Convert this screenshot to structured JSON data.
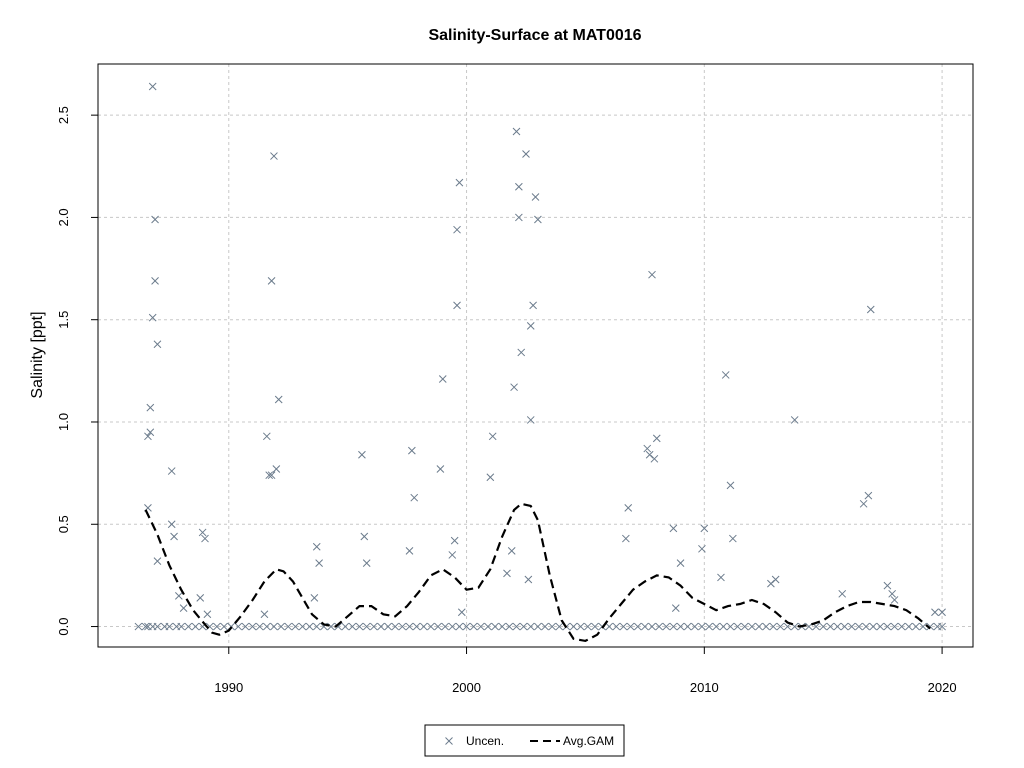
{
  "chart_data": {
    "type": "scatter",
    "title": "Salinity-Surface at MAT0016",
    "xlabel": "",
    "ylabel": "Salinity [ppt]",
    "xlim": [
      1984.5,
      2021.3
    ],
    "ylim": [
      -0.1,
      2.75
    ],
    "xticks": [
      1990,
      2000,
      2010,
      2020
    ],
    "yticks": [
      0.0,
      0.5,
      1.0,
      1.5,
      2.0,
      2.5
    ],
    "grid": true,
    "legend": {
      "placement": "bottom-center",
      "entries": [
        "Uncen.",
        "Avg.GAM"
      ]
    },
    "colors": {
      "points": "#6b7b8c",
      "gam": "#000000",
      "grid": "#c8c8c8"
    },
    "series": [
      {
        "name": "Uncen.",
        "marker": "x",
        "x": [
          1986.2,
          1986.5,
          1986.6,
          1986.8,
          1987.0,
          1987.3,
          1987.5,
          1987.8,
          1988.0,
          1988.3,
          1988.6,
          1988.9,
          1989.2,
          1989.5,
          1989.8,
          1990.1,
          1990.4,
          1990.7,
          1991.0,
          1991.3,
          1991.6,
          1991.9,
          1992.2,
          1992.5,
          1992.8,
          1993.1,
          1993.4,
          1993.7,
          1994.0,
          1994.3,
          1994.6,
          1994.9,
          1995.2,
          1995.5,
          1995.8,
          1996.1,
          1996.4,
          1996.7,
          1997.0,
          1997.3,
          1997.6,
          1997.9,
          1998.2,
          1998.5,
          1998.8,
          1999.1,
          1999.4,
          1999.7,
          2000.0,
          2000.3,
          2000.6,
          2000.9,
          2001.2,
          2001.5,
          2001.8,
          2002.1,
          2002.4,
          2002.7,
          2003.0,
          2003.3,
          2003.6,
          2003.9,
          2004.2,
          2004.5,
          2004.8,
          2005.1,
          2005.4,
          2005.7,
          2006.0,
          2006.3,
          2006.6,
          2006.9,
          2007.2,
          2007.5,
          2007.8,
          2008.1,
          2008.4,
          2008.7,
          2009.0,
          2009.3,
          2009.6,
          2009.9,
          2010.2,
          2010.5,
          2010.8,
          2011.1,
          2011.4,
          2011.7,
          2012.0,
          2012.3,
          2012.6,
          2012.9,
          2013.2,
          2013.5,
          2013.8,
          2014.1,
          2014.4,
          2014.7,
          2015.0,
          2015.3,
          2015.6,
          2015.9,
          2016.2,
          2016.5,
          2016.8,
          2017.1,
          2017.4,
          2017.7,
          2018.0,
          2018.3,
          2018.6,
          2018.9,
          2019.2,
          2019.5,
          2019.8,
          2020.0,
          1986.6,
          1986.6,
          1986.7,
          1986.7,
          1986.8,
          1986.8,
          1986.9,
          1986.9,
          1987.0,
          1987.0,
          1987.6,
          1987.6,
          1987.7,
          1987.9,
          1988.1,
          1988.8,
          1988.9,
          1989.0,
          1989.1,
          1991.5,
          1991.6,
          1991.7,
          1991.8,
          1991.8,
          1991.9,
          1992.0,
          1992.1,
          1993.6,
          1993.7,
          1993.8,
          1995.6,
          1995.7,
          1995.8,
          1997.6,
          1997.7,
          1997.8,
          1998.9,
          1999.0,
          1999.4,
          1999.5,
          1999.6,
          1999.6,
          1999.7,
          1999.8,
          2001.0,
          2001.1,
          2001.7,
          2001.9,
          2002.0,
          2002.1,
          2002.2,
          2002.2,
          2002.3,
          2002.5,
          2002.6,
          2002.7,
          2002.7,
          2002.8,
          2002.9,
          2003.0,
          2006.7,
          2006.8,
          2007.6,
          2007.7,
          2007.8,
          2007.9,
          2008.0,
          2008.7,
          2008.8,
          2009.0,
          2009.9,
          2010.0,
          2010.7,
          2010.9,
          2011.1,
          2011.2,
          2012.8,
          2013.0,
          2013.8,
          2015.8,
          2016.7,
          2016.9,
          2017.0,
          2017.7,
          2017.9,
          2018.0,
          2019.7,
          2020.0
        ],
        "y": [
          0,
          0,
          0,
          0,
          0,
          0,
          0,
          0,
          0,
          0,
          0,
          0,
          0,
          0,
          0,
          0,
          0,
          0,
          0,
          0,
          0,
          0,
          0,
          0,
          0,
          0,
          0,
          0,
          0,
          0,
          0,
          0,
          0,
          0,
          0,
          0,
          0,
          0,
          0,
          0,
          0,
          0,
          0,
          0,
          0,
          0,
          0,
          0,
          0,
          0,
          0,
          0,
          0,
          0,
          0,
          0,
          0,
          0,
          0,
          0,
          0,
          0,
          0,
          0,
          0,
          0,
          0,
          0,
          0,
          0,
          0,
          0,
          0,
          0,
          0,
          0,
          0,
          0,
          0,
          0,
          0,
          0,
          0,
          0,
          0,
          0,
          0,
          0,
          0,
          0,
          0,
          0,
          0,
          0,
          0,
          0,
          0,
          0,
          0,
          0,
          0,
          0,
          0,
          0,
          0,
          0,
          0,
          0,
          0,
          0,
          0,
          0,
          0,
          0,
          0,
          0,
          0.58,
          0.93,
          1.07,
          0.95,
          1.51,
          2.64,
          1.69,
          1.99,
          1.38,
          0.32,
          0.76,
          0.5,
          0.44,
          0.15,
          0.09,
          0.14,
          0.46,
          0.43,
          0.06,
          0.06,
          0.93,
          0.74,
          1.69,
          0.74,
          2.3,
          0.77,
          1.11,
          0.14,
          0.39,
          0.31,
          0.84,
          0.44,
          0.31,
          0.37,
          0.86,
          0.63,
          0.77,
          1.21,
          0.35,
          0.42,
          1.57,
          1.94,
          2.17,
          0.07,
          0.73,
          0.93,
          0.26,
          0.37,
          1.17,
          2.42,
          2.0,
          2.15,
          1.34,
          2.31,
          0.23,
          1.01,
          1.47,
          1.57,
          2.1,
          1.99,
          0.43,
          0.58,
          0.87,
          0.84,
          1.72,
          0.82,
          0.92,
          0.48,
          0.09,
          0.31,
          0.38,
          0.48,
          0.24,
          1.23,
          0.69,
          0.43,
          0.21,
          0.23,
          1.01,
          0.16,
          0.6,
          0.64,
          1.55,
          0.2,
          0.16,
          0.13,
          0.07,
          0.07
        ]
      },
      {
        "name": "Avg.GAM",
        "line": "dashed",
        "x": [
          1986.5,
          1987.0,
          1987.5,
          1988.0,
          1988.5,
          1989.0,
          1989.3,
          1989.6,
          1990.0,
          1990.5,
          1991.0,
          1991.5,
          1992.0,
          1992.3,
          1992.7,
          1993.0,
          1993.5,
          1994.0,
          1994.5,
          1995.0,
          1995.5,
          1996.0,
          1996.5,
          1997.0,
          1997.5,
          1998.0,
          1998.5,
          1999.0,
          1999.5,
          2000.0,
          2000.5,
          2001.0,
          2001.5,
          2002.0,
          2002.3,
          2002.7,
          2003.0,
          2003.5,
          2004.0,
          2004.5,
          2005.0,
          2005.5,
          2006.0,
          2006.5,
          2007.0,
          2007.5,
          2008.0,
          2008.5,
          2009.0,
          2009.5,
          2010.0,
          2010.5,
          2011.0,
          2011.5,
          2012.0,
          2012.5,
          2013.0,
          2013.5,
          2014.0,
          2014.5,
          2015.0,
          2015.5,
          2016.0,
          2016.5,
          2017.0,
          2017.5,
          2018.0,
          2018.5,
          2019.0,
          2019.5
        ],
        "y": [
          0.57,
          0.45,
          0.3,
          0.18,
          0.08,
          0.01,
          -0.03,
          -0.04,
          -0.02,
          0.05,
          0.13,
          0.22,
          0.28,
          0.27,
          0.22,
          0.16,
          0.06,
          0.01,
          0.0,
          0.05,
          0.1,
          0.1,
          0.06,
          0.05,
          0.1,
          0.17,
          0.25,
          0.28,
          0.24,
          0.18,
          0.19,
          0.28,
          0.44,
          0.57,
          0.6,
          0.59,
          0.52,
          0.25,
          0.03,
          -0.06,
          -0.07,
          -0.04,
          0.04,
          0.11,
          0.18,
          0.22,
          0.25,
          0.24,
          0.2,
          0.14,
          0.11,
          0.08,
          0.1,
          0.11,
          0.13,
          0.11,
          0.07,
          0.02,
          0.0,
          0.01,
          0.03,
          0.07,
          0.1,
          0.12,
          0.12,
          0.11,
          0.1,
          0.08,
          0.04,
          -0.01
        ]
      }
    ]
  }
}
